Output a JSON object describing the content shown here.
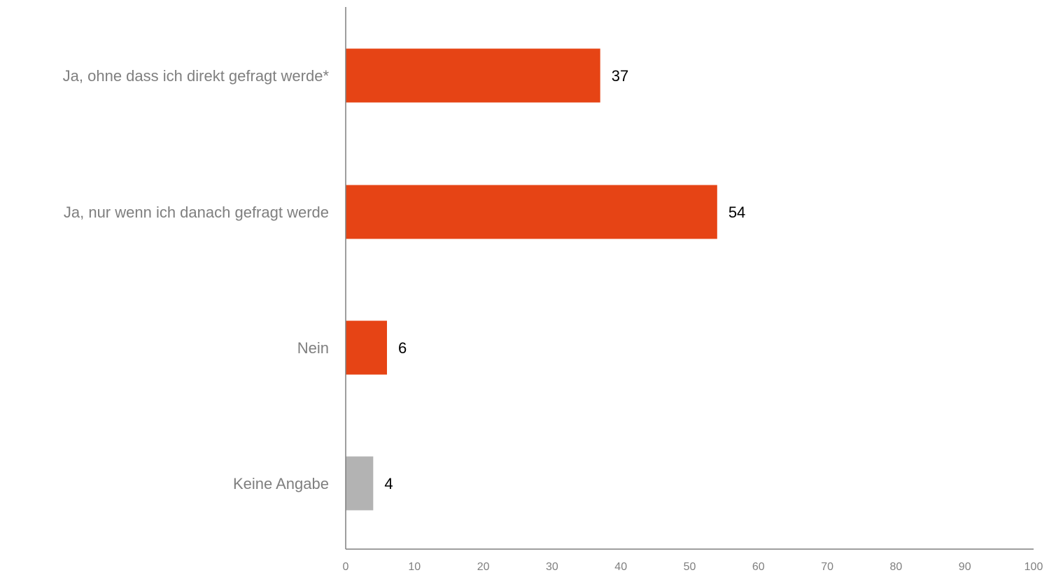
{
  "chart_data": {
    "type": "bar",
    "orientation": "horizontal",
    "categories": [
      "Ja, ohne dass ich direkt gefragt werde*",
      "Ja, nur wenn ich danach gefragt werde",
      "Nein",
      "Keine Angabe"
    ],
    "values": [
      37,
      54,
      6,
      4
    ],
    "colors": [
      "#e64415",
      "#e64415",
      "#e64415",
      "#b3b3b3"
    ],
    "xlim": [
      0,
      100
    ],
    "xticks": [
      "0",
      "10",
      "20",
      "30",
      "40",
      "50",
      "60",
      "70",
      "80",
      "90",
      "100"
    ],
    "title": "",
    "xlabel": "",
    "ylabel": "",
    "grid": false,
    "legend": "none"
  },
  "colors": {
    "accent": "#e64415",
    "neutral_bar": "#b3b3b3",
    "axis": "#7f7f7f",
    "label_text": "#7f7f7f",
    "value_text": "#000000"
  }
}
